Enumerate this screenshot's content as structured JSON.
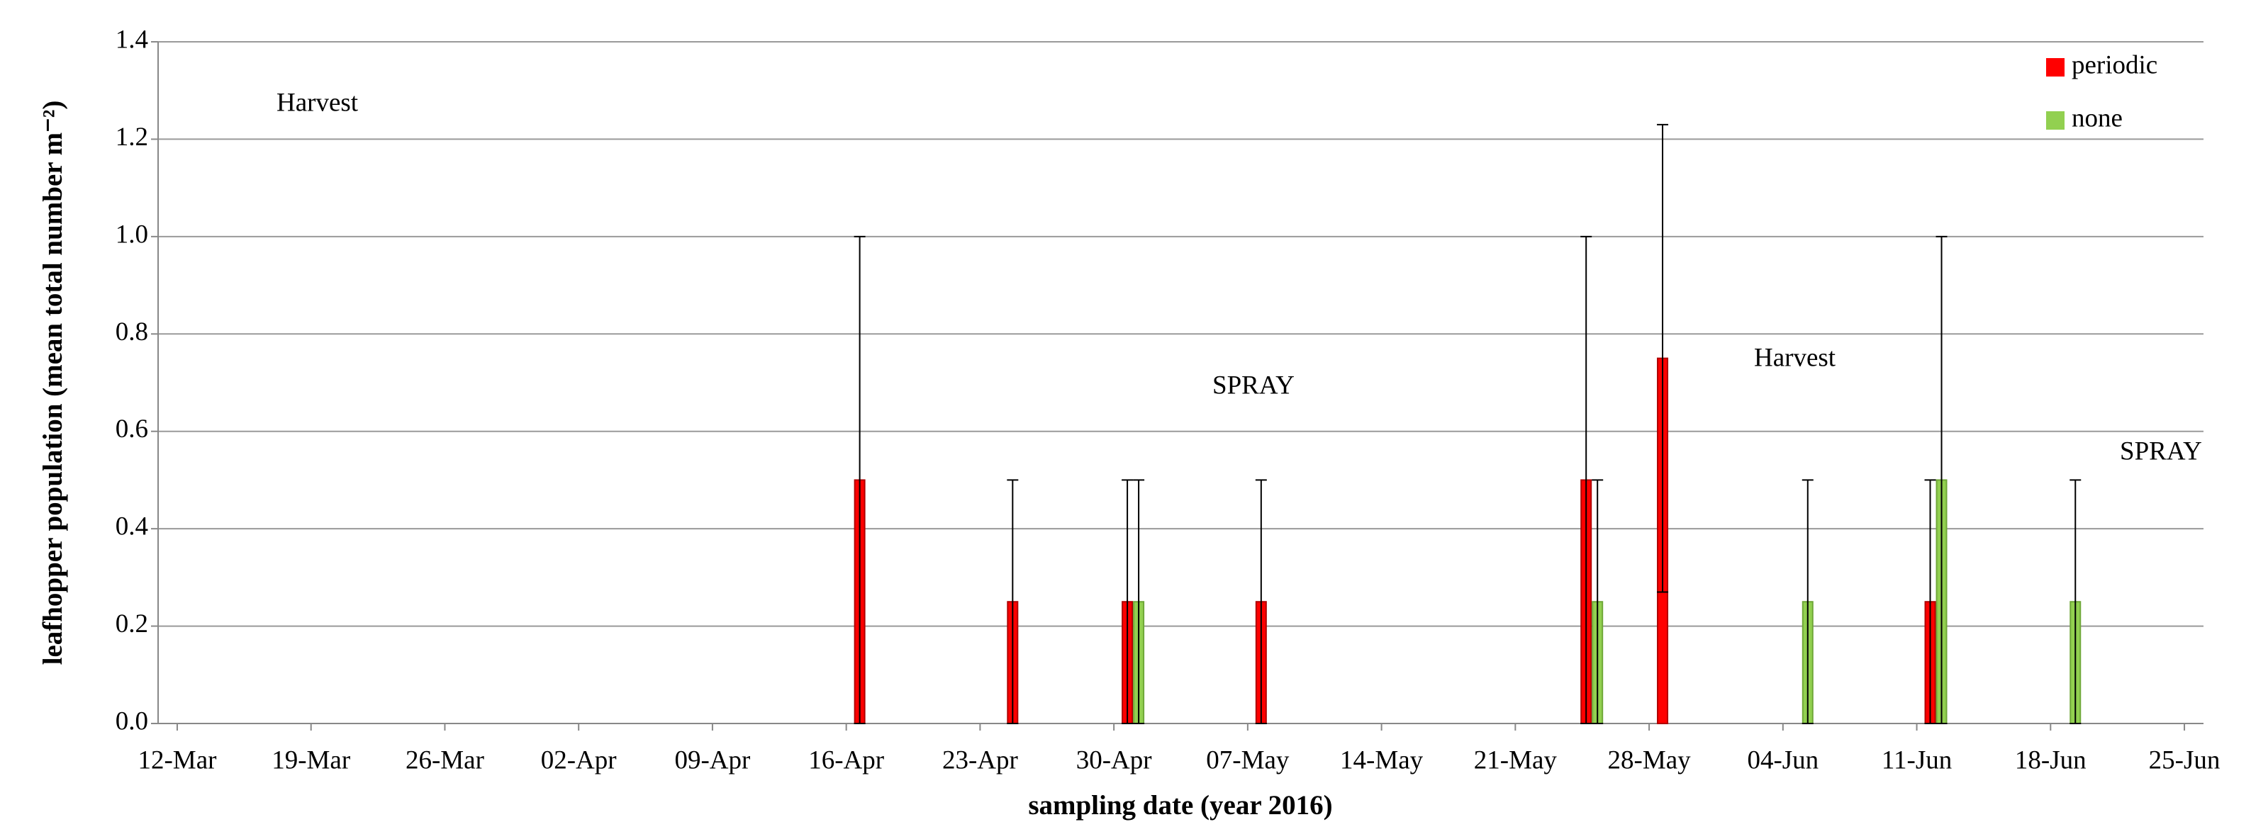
{
  "chart_data": {
    "type": "bar",
    "x_label": "sampling date (year 2016)",
    "y_label": "leafhopper population (mean total number m⁻²)",
    "x": [
      "17-Apr",
      "25-Apr",
      "01-May",
      "08-May",
      "25-May",
      "29-May",
      "05-Jun",
      "12-Jun",
      "19-Jun"
    ],
    "series": [
      {
        "name": "periodic",
        "color": "#ff0000",
        "values": [
          0.5,
          0.25,
          0.25,
          0.25,
          0.5,
          0.75,
          null,
          0.25,
          null
        ],
        "errors": [
          0.5,
          0.25,
          0.25,
          0.25,
          0.5,
          0.48,
          null,
          0.25,
          null
        ]
      },
      {
        "name": "none",
        "color": "#92d050",
        "values": [
          null,
          null,
          0.25,
          null,
          0.25,
          null,
          0.25,
          0.5,
          0.25
        ],
        "errors": [
          null,
          null,
          0.25,
          null,
          0.25,
          null,
          0.25,
          0.5,
          0.25
        ]
      }
    ],
    "xlim": [
      "11-Mar",
      "26-Jun"
    ],
    "xticks": [
      "12-Mar",
      "19-Mar",
      "26-Mar",
      "02-Apr",
      "09-Apr",
      "16-Apr",
      "23-Apr",
      "30-Apr",
      "07-May",
      "14-May",
      "21-May",
      "28-May",
      "04-Jun",
      "11-Jun",
      "18-Jun",
      "25-Jun"
    ],
    "ylim": [
      0,
      1.4
    ],
    "yticks": [
      {
        "value": 0,
        "label": "0.0"
      },
      0.2,
      0.4,
      0.6,
      0.8,
      {
        "value": 1,
        "label": "1.0"
      },
      1.2,
      1.4
    ],
    "grid": true,
    "legend": "top-right",
    "annotations": [
      "Harvest",
      "SPRAY",
      "Harvest",
      "SPRAY"
    ]
  }
}
